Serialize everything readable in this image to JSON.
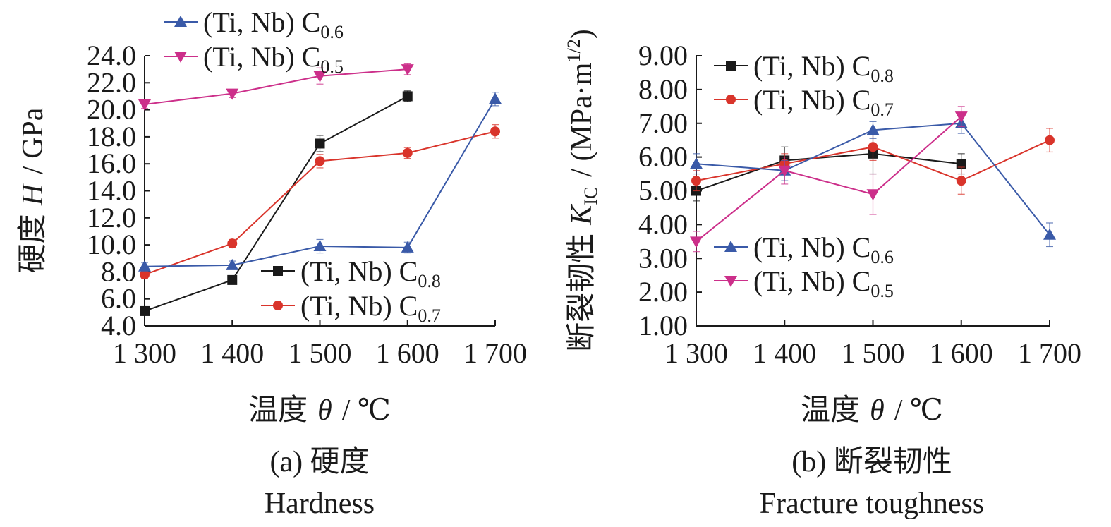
{
  "chart_data": [
    {
      "type": "line",
      "panel": "a",
      "caption_cn": "(a) 硬度",
      "caption_en": "Hardness",
      "ylabel_cn": "硬度",
      "ylabel_sym": "H",
      "ylabel_unit": "/ GPa",
      "xlabel_cn": "温度",
      "xlabel_sym": "θ",
      "xlabel_unit": "/ ℃",
      "x": [
        1300,
        1400,
        1500,
        1600,
        1700
      ],
      "xtick_labels": [
        "1 300",
        "1 400",
        "1 500",
        "1 600",
        "1 700"
      ],
      "ylim": [
        4,
        24
      ],
      "yticks": [
        4,
        6,
        8,
        10,
        12,
        14,
        16,
        18,
        20,
        22,
        24
      ],
      "ytick_labels": [
        "4.0",
        "6.0",
        "8.0",
        "10.0",
        "12.0",
        "14.0",
        "16.0",
        "18.0",
        "20.0",
        "22.0",
        "24.0"
      ],
      "series": [
        {
          "name": "(Ti, Nb) C",
          "sub": "0.8",
          "color": "#1a1a1a",
          "marker": "square",
          "x": [
            1300,
            1400,
            1500,
            1600
          ],
          "values": [
            5.1,
            7.4,
            17.5,
            21.0
          ],
          "err": [
            0.2,
            0.3,
            0.6,
            0.4
          ]
        },
        {
          "name": "(Ti, Nb) C",
          "sub": "0.7",
          "color": "#d9342b",
          "marker": "circle",
          "x": [
            1300,
            1400,
            1500,
            1600,
            1700
          ],
          "values": [
            7.8,
            10.1,
            16.2,
            16.8,
            18.4
          ],
          "err": [
            0.3,
            0.3,
            0.5,
            0.4,
            0.5
          ]
        },
        {
          "name": "(Ti, Nb) C",
          "sub": "0.6",
          "color": "#3a5aa8",
          "marker": "triangle-up",
          "x": [
            1300,
            1400,
            1500,
            1600,
            1700
          ],
          "values": [
            8.4,
            8.5,
            9.9,
            9.8,
            20.8
          ],
          "err": [
            0.3,
            0.3,
            0.5,
            0.4,
            0.5
          ]
        },
        {
          "name": "(Ti, Nb) C",
          "sub": "0.5",
          "color": "#cc2f8a",
          "marker": "triangle-down",
          "x": [
            1300,
            1400,
            1500,
            1600
          ],
          "values": [
            20.4,
            21.2,
            22.5,
            23.0
          ],
          "err": [
            0.3,
            0.3,
            0.6,
            0.4
          ]
        }
      ]
    },
    {
      "type": "line",
      "panel": "b",
      "caption_cn": "(b) 断裂韧性",
      "caption_en": "Fracture toughness",
      "ylabel_cn": "断裂韧性",
      "ylabel_sym": "K",
      "ylabel_sub": "IC",
      "ylabel_unit": "/ (MPa·m",
      "ylabel_sup": "1/2",
      "ylabel_close": ")",
      "xlabel_cn": "温度",
      "xlabel_sym": "θ",
      "xlabel_unit": "/ ℃",
      "x": [
        1300,
        1400,
        1500,
        1600,
        1700
      ],
      "xtick_labels": [
        "1 300",
        "1 400",
        "1 500",
        "1 600",
        "1 700"
      ],
      "ylim": [
        1,
        9
      ],
      "yticks": [
        1,
        2,
        3,
        4,
        5,
        6,
        7,
        8,
        9
      ],
      "ytick_labels": [
        "1.00",
        "2.00",
        "3.00",
        "4.00",
        "5.00",
        "6.00",
        "7.00",
        "8.00",
        "9.00"
      ],
      "series": [
        {
          "name": "(Ti, Nb) C",
          "sub": "0.8",
          "color": "#1a1a1a",
          "marker": "square",
          "x": [
            1300,
            1400,
            1500,
            1600
          ],
          "values": [
            5.0,
            5.9,
            6.1,
            5.8
          ],
          "err": [
            0.3,
            0.4,
            0.6,
            0.3
          ]
        },
        {
          "name": "(Ti, Nb) C",
          "sub": "0.7",
          "color": "#d9342b",
          "marker": "circle",
          "x": [
            1300,
            1400,
            1500,
            1600,
            1700
          ],
          "values": [
            5.3,
            5.8,
            6.3,
            5.3,
            6.5
          ],
          "err": [
            0.3,
            0.3,
            0.4,
            0.4,
            0.35
          ]
        },
        {
          "name": "(Ti, Nb) C",
          "sub": "0.6",
          "color": "#3a5aa8",
          "marker": "triangle-up",
          "x": [
            1300,
            1400,
            1500,
            1600,
            1700
          ],
          "values": [
            5.8,
            5.6,
            6.8,
            7.0,
            3.7
          ],
          "err": [
            0.3,
            0.3,
            0.25,
            0.3,
            0.35
          ]
        },
        {
          "name": "(Ti, Nb) C",
          "sub": "0.5",
          "color": "#cc2f8a",
          "marker": "triangle-down",
          "x": [
            1300,
            1400,
            1500,
            1600
          ],
          "values": [
            3.5,
            5.6,
            4.9,
            7.2
          ],
          "err": [
            0.3,
            0.4,
            0.6,
            0.3
          ]
        }
      ]
    }
  ]
}
